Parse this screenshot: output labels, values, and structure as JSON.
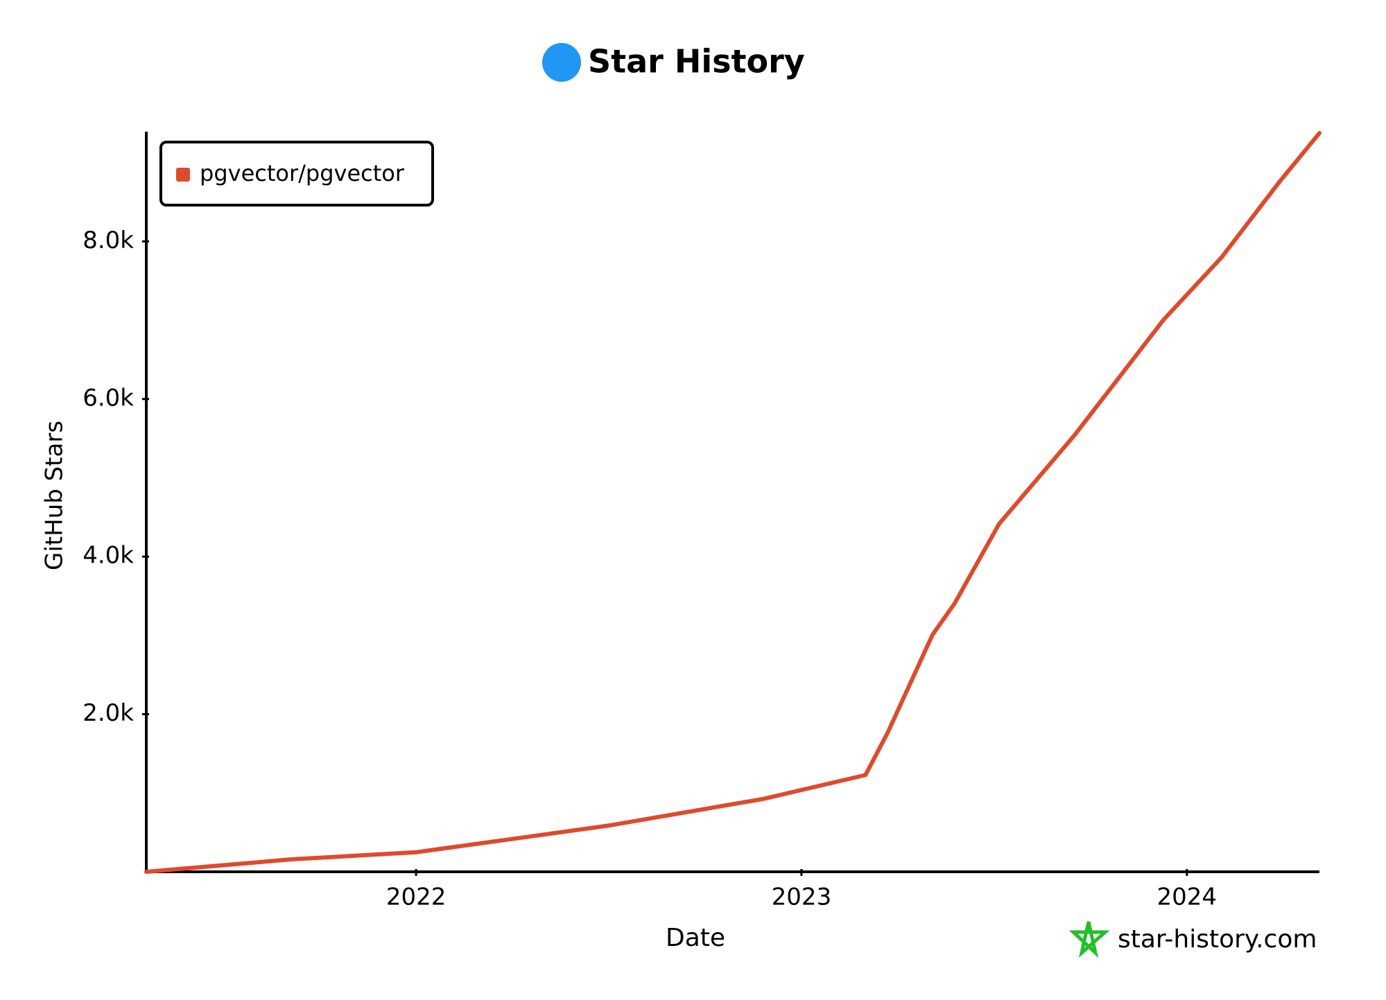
{
  "chart_data": {
    "type": "line",
    "title": "Star History",
    "x_label": "Date",
    "y_label": "GitHub Stars",
    "x": [
      2021.3,
      2021.677,
      2022.0,
      2022.499,
      2022.9,
      2023.166,
      2023.224,
      2023.34,
      2023.397,
      2023.513,
      2023.709,
      2023.94,
      2024.09,
      2024.24,
      2024.344
    ],
    "series": [
      {
        "name": "pgvector/pgvector",
        "color": "#dd4b2d",
        "values": [
          0,
          158,
          248,
          586,
          924,
          1228,
          1769,
          3008,
          3403,
          4417,
          5544,
          7008,
          7797,
          8755,
          9375
        ]
      }
    ],
    "xlim": [
      2021.3,
      2024.344
    ],
    "xticks": [
      2022,
      2023,
      2024
    ],
    "ylim": [
      0,
      9375
    ],
    "yticks": [
      {
        "value": 2000,
        "label": "2.0k"
      },
      {
        "value": 4000,
        "label": "4.0k"
      },
      {
        "value": 6000,
        "label": "6.0k"
      },
      {
        "value": 8000,
        "label": "8.0k"
      }
    ],
    "legend": "top-left",
    "watermark": "star-history.com"
  }
}
